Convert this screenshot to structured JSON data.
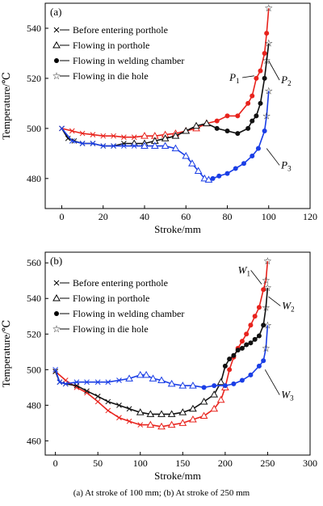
{
  "figure": {
    "caption": "(a) At stroke of 100 mm; (b) At stroke of 250 mm"
  },
  "chart_data": [
    {
      "type": "line",
      "panel_label": "(a)",
      "xlabel": "Stroke/mm",
      "ylabel": "Temperature/℃",
      "xlim": [
        -8,
        120
      ],
      "ylim": [
        468,
        550
      ],
      "xticks": [
        0,
        20,
        40,
        60,
        80,
        100,
        120
      ],
      "yticks": [
        480,
        500,
        520,
        540
      ],
      "legend": [
        "Before entering porthole",
        "Flowing in porthole",
        "Flowing in welding chamber",
        "Flowing in die hole"
      ],
      "legend_placement": "top-left",
      "series": [
        {
          "color": "#e8231d",
          "points": [
            [
              0,
              500
            ],
            [
              5,
              499
            ],
            [
              10,
              498
            ],
            [
              15,
              497.5
            ],
            [
              20,
              497
            ],
            [
              25,
              497
            ],
            [
              30,
              496.5
            ],
            [
              35,
              496.5
            ],
            [
              40,
              497
            ],
            [
              45,
              497
            ],
            [
              50,
              497.5
            ],
            [
              55,
              498
            ],
            [
              60,
              499
            ],
            [
              65,
              500
            ],
            [
              70,
              502
            ],
            [
              75,
              503
            ],
            [
              80,
              505
            ],
            [
              85,
              505
            ],
            [
              90,
              510
            ],
            [
              92,
              513
            ],
            [
              94,
              520
            ],
            [
              96,
              523
            ],
            [
              98,
              530
            ],
            [
              99,
              538
            ],
            [
              100,
              548
            ]
          ]
        },
        {
          "color": "#111111",
          "points": [
            [
              0,
              500
            ],
            [
              3,
              496
            ],
            [
              6,
              495
            ],
            [
              10,
              494
            ],
            [
              15,
              494
            ],
            [
              20,
              493
            ],
            [
              25,
              493
            ],
            [
              30,
              494
            ],
            [
              35,
              494
            ],
            [
              40,
              494
            ],
            [
              45,
              495
            ],
            [
              50,
              496
            ],
            [
              55,
              497
            ],
            [
              60,
              499
            ],
            [
              65,
              501
            ],
            [
              70,
              502
            ],
            [
              75,
              500
            ],
            [
              80,
              499
            ],
            [
              85,
              498
            ],
            [
              90,
              500
            ],
            [
              92,
              503
            ],
            [
              94,
              505
            ],
            [
              96,
              510
            ],
            [
              98,
              520
            ],
            [
              99,
              527
            ],
            [
              100,
              534
            ]
          ]
        },
        {
          "color": "#1a3ee6",
          "points": [
            [
              0,
              500
            ],
            [
              5,
              495
            ],
            [
              10,
              494
            ],
            [
              15,
              494
            ],
            [
              20,
              493
            ],
            [
              25,
              493
            ],
            [
              30,
              493
            ],
            [
              35,
              493
            ],
            [
              40,
              493
            ],
            [
              45,
              493
            ],
            [
              50,
              493
            ],
            [
              55,
              492
            ],
            [
              60,
              489
            ],
            [
              63,
              486
            ],
            [
              66,
              483
            ],
            [
              69,
              480
            ],
            [
              71,
              479.5
            ],
            [
              73,
              480
            ],
            [
              76,
              481
            ],
            [
              80,
              482
            ],
            [
              84,
              484
            ],
            [
              88,
              486
            ],
            [
              92,
              489
            ],
            [
              95,
              492
            ],
            [
              98,
              499
            ],
            [
              99,
              505
            ],
            [
              100,
              515
            ]
          ]
        }
      ],
      "annotations": [
        {
          "text": "P",
          "sub": "1",
          "x": 81,
          "y": 519,
          "line_to": [
            93,
            521
          ]
        },
        {
          "text": "P",
          "sub": "2",
          "x": 106,
          "y": 518,
          "line_to": [
            100,
            527
          ]
        },
        {
          "text": "P",
          "sub": "3",
          "x": 106,
          "y": 484,
          "line_to": [
            99,
            492
          ]
        }
      ]
    },
    {
      "type": "line",
      "panel_label": "(b)",
      "xlabel": "Stroke/mm",
      "ylabel": "Temperature/℃",
      "xlim": [
        -12,
        300
      ],
      "ylim": [
        452,
        566
      ],
      "xticks": [
        0,
        50,
        100,
        150,
        200,
        250,
        300
      ],
      "yticks": [
        460,
        480,
        500,
        520,
        540,
        560
      ],
      "legend": [
        "Before entering porthole",
        "Flowing in porthole",
        "Flowing in welding chamber",
        "Flowing in die hole"
      ],
      "legend_placement": "top-left",
      "series": [
        {
          "color": "#e8231d",
          "points": [
            [
              0,
              499
            ],
            [
              12,
              494
            ],
            [
              25,
              490
            ],
            [
              37,
              487
            ],
            [
              50,
              482
            ],
            [
              62,
              477
            ],
            [
              75,
              473
            ],
            [
              87,
              471
            ],
            [
              100,
              469
            ],
            [
              112,
              469
            ],
            [
              125,
              468
            ],
            [
              137,
              469
            ],
            [
              150,
              470
            ],
            [
              162,
              472
            ],
            [
              175,
              474
            ],
            [
              187,
              478
            ],
            [
              195,
              483
            ],
            [
              200,
              490
            ],
            [
              205,
              500
            ],
            [
              210,
              507
            ],
            [
              215,
              512
            ],
            [
              220,
              516
            ],
            [
              225,
              520
            ],
            [
              230,
              525
            ],
            [
              235,
              530
            ],
            [
              240,
              535
            ],
            [
              245,
              545
            ],
            [
              248,
              550
            ],
            [
              250,
              561
            ]
          ]
        },
        {
          "color": "#111111",
          "points": [
            [
              0,
              499
            ],
            [
              5,
              493
            ],
            [
              12,
              492
            ],
            [
              25,
              491
            ],
            [
              37,
              488
            ],
            [
              50,
              485
            ],
            [
              62,
              482
            ],
            [
              75,
              480
            ],
            [
              87,
              478
            ],
            [
              100,
              476
            ],
            [
              112,
              475
            ],
            [
              125,
              475
            ],
            [
              137,
              475
            ],
            [
              150,
              476
            ],
            [
              162,
              478
            ],
            [
              175,
              482
            ],
            [
              187,
              486
            ],
            [
              195,
              493
            ],
            [
              200,
              502
            ],
            [
              205,
              506
            ],
            [
              210,
              508
            ],
            [
              215,
              511
            ],
            [
              220,
              512
            ],
            [
              225,
              514
            ],
            [
              230,
              515
            ],
            [
              235,
              517
            ],
            [
              240,
              519
            ],
            [
              245,
              525
            ],
            [
              248,
              535
            ],
            [
              250,
              546
            ]
          ]
        },
        {
          "color": "#1a3ee6",
          "points": [
            [
              0,
              500
            ],
            [
              5,
              493
            ],
            [
              12,
              492
            ],
            [
              25,
              493
            ],
            [
              37,
              493
            ],
            [
              50,
              493
            ],
            [
              62,
              493
            ],
            [
              75,
              494
            ],
            [
              87,
              495
            ],
            [
              100,
              497
            ],
            [
              107,
              497
            ],
            [
              115,
              495
            ],
            [
              125,
              494
            ],
            [
              137,
              492
            ],
            [
              150,
              491
            ],
            [
              162,
              491
            ],
            [
              175,
              490
            ],
            [
              187,
              491
            ],
            [
              200,
              491
            ],
            [
              210,
              492
            ],
            [
              220,
              494
            ],
            [
              230,
              497
            ],
            [
              240,
              502
            ],
            [
              245,
              505
            ],
            [
              248,
              512
            ],
            [
              250,
              525
            ]
          ]
        }
      ],
      "annotations": [
        {
          "text": "W",
          "sub": "1",
          "x": 215,
          "y": 554,
          "line_to": [
            243,
            548
          ]
        },
        {
          "text": "W",
          "sub": "2",
          "x": 267,
          "y": 534,
          "line_to": [
            251,
            541
          ]
        },
        {
          "text": "W",
          "sub": "3",
          "x": 266,
          "y": 484,
          "line_to": [
            247,
            500
          ]
        }
      ]
    }
  ]
}
